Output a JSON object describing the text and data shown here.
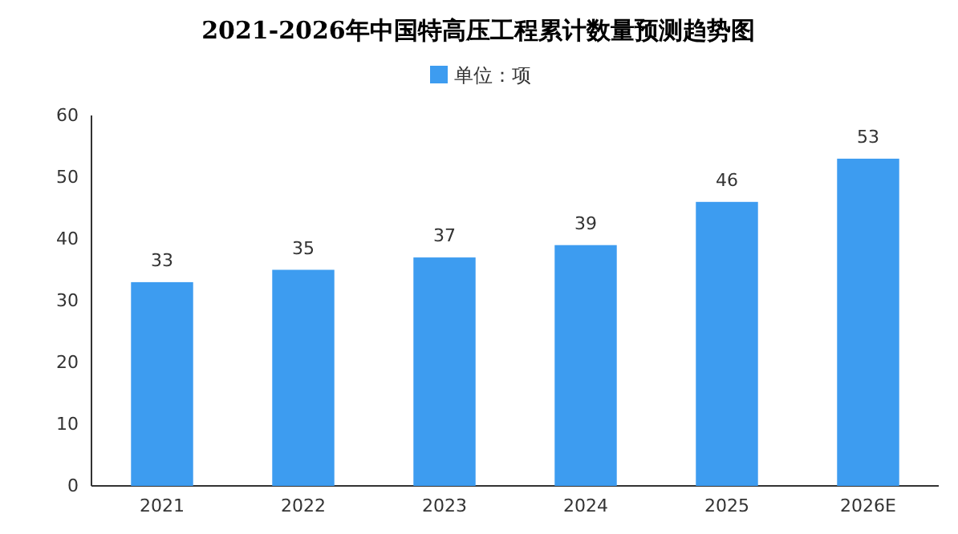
{
  "chart_data": {
    "type": "bar",
    "title": "2021-2026年中国特高压工程累计数量预测趋势图",
    "categories": [
      "2021",
      "2022",
      "2023",
      "2024",
      "2025",
      "2026E"
    ],
    "series": [
      {
        "name": "单位：项",
        "color": "#3d9cf0",
        "values": [
          33,
          35,
          37,
          39,
          46,
          53
        ]
      }
    ],
    "ylim": [
      0,
      60
    ],
    "yticks": [
      0,
      10,
      20,
      30,
      40,
      50,
      60
    ],
    "data_labels": true,
    "legend": "top",
    "grid": false
  }
}
